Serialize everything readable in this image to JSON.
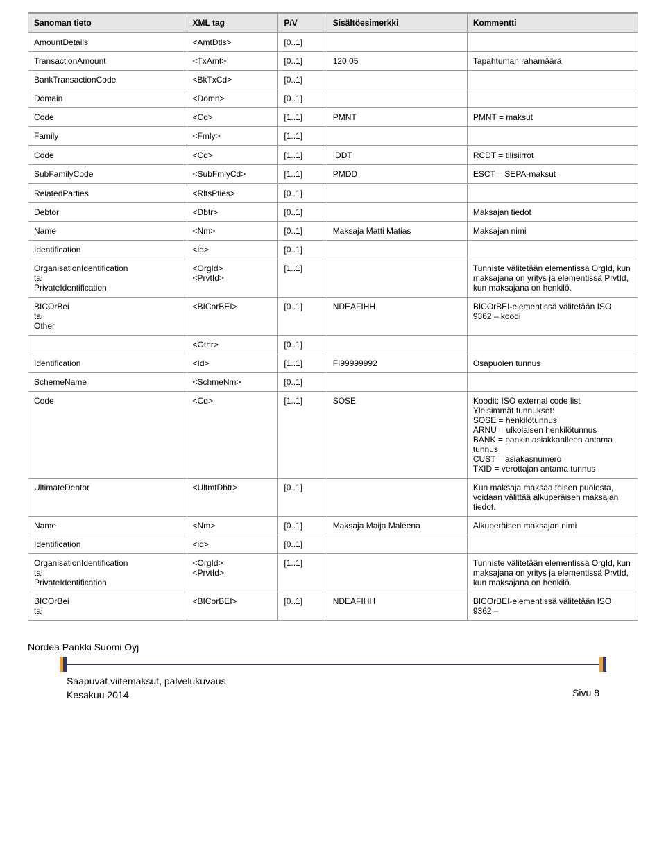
{
  "table": {
    "headers": {
      "c0": "Sanoman tieto",
      "c1": "XML tag",
      "c2": "P/V",
      "c3": "Sisältöesimerkki",
      "c4": "Kommentti"
    },
    "col_widths": [
      "26%",
      "15%",
      "8%",
      "23%",
      "28%"
    ],
    "border_color": "#999999",
    "header_bg": "#e6e6e6",
    "rows": [
      {
        "c0": "AmountDetails",
        "c1": "<AmtDtls>",
        "c2": "[0..1]",
        "c3": "",
        "c4": ""
      },
      {
        "c0": "TransactionAmount",
        "c1": "<TxAmt>",
        "c2": "[0..1]",
        "c3": "120.05",
        "c4": "Tapahtuman rahamäärä"
      },
      {
        "c0": "BankTransactionCode",
        "c1": "<BkTxCd>",
        "c2": "[0..1]",
        "c3": "",
        "c4": ""
      },
      {
        "c0": "Domain",
        "c1": "<Domn>",
        "c2": "[0..1]",
        "c3": "",
        "c4": ""
      },
      {
        "c0": "Code",
        "c1": "<Cd>",
        "c2": "[1..1]",
        "c3": "PMNT",
        "c4": "PMNT = maksut"
      },
      {
        "c0": "Family",
        "c1": "<Fmly>",
        "c2": "[1..1]",
        "c3": "",
        "c4": ""
      },
      {
        "c0": "Code",
        "c1": "<Cd>",
        "c2": "[1..1]",
        "c3": "IDDT",
        "c4": "RCDT = tilisiirrot",
        "heavy": true
      },
      {
        "c0": "SubFamilyCode",
        "c1": "<SubFmlyCd>",
        "c2": "[1..1]",
        "c3": "PMDD",
        "c4": "ESCT = SEPA-maksut",
        "heavy_bottom": true
      },
      {
        "c0": "RelatedParties",
        "c1": "<RltsPties>",
        "c2": "[0..1]",
        "c3": "",
        "c4": ""
      },
      {
        "c0": "Debtor",
        "c1": "<Dbtr>",
        "c2": "[0..1]",
        "c3": "",
        "c4": "Maksajan tiedot"
      },
      {
        "c0": "Name",
        "c1": "<Nm>",
        "c2": "[0..1]",
        "c3": "Maksaja Matti Matias",
        "c4": "Maksajan nimi"
      },
      {
        "c0": "Identification",
        "c1": "<id>",
        "c2": "[0..1]",
        "c3": "",
        "c4": ""
      },
      {
        "c0": "OrganisationIdentification\ntai\nPrivateIdentification",
        "c1": "<OrgId>\n<PrvtId>",
        "c2": "[1..1]",
        "c3": "",
        "c4": "Tunniste välitetään elementissä OrgId, kun maksajana on yritys ja elementissä PrvtId, kun maksajana on henkilö."
      },
      {
        "c0": "BICOrBei\ntai\nOther",
        "c1": "<BICorBEI>",
        "c2": "[0..1]",
        "c3": "NDEAFIHH",
        "c4": "BICOrBEI-elementissä välitetään ISO 9362 – koodi"
      },
      {
        "c0": "",
        "c1": "<Othr>",
        "c2": "[0..1]",
        "c3": "",
        "c4": ""
      },
      {
        "c0": "Identification",
        "c1": "<Id>",
        "c2": "[1..1]",
        "c3": "FI99999992",
        "c4": "Osapuolen tunnus"
      },
      {
        "c0": "SchemeName",
        "c1": "<SchmeNm>",
        "c2": "[0..1]",
        "c3": "",
        "c4": ""
      },
      {
        "c0": "Code",
        "c1": "<Cd>",
        "c2": "[1..1]",
        "c3": "SOSE",
        "c4": "Koodit: ISO external code list\nYleisimmät tunnukset:\nSOSE = henkilötunnus\nARNU = ulkolaisen henkilötunnus\nBANK = pankin asiakkaalleen antama tunnus\nCUST = asiakasnumero\nTXID = verottajan antama tunnus"
      },
      {
        "c0": "UltimateDebtor",
        "c1": "<UltmtDbtr>",
        "c2": "[0..1]",
        "c3": "",
        "c4": "Kun maksaja maksaa toisen puolesta, voidaan välittää alkuperäisen maksajan tiedot."
      },
      {
        "c0": "Name",
        "c1": "<Nm>",
        "c2": "[0..1]",
        "c3": "Maksaja Maija Maleena",
        "c4": "Alkuperäisen maksajan nimi"
      },
      {
        "c0": "Identification",
        "c1": "<id>",
        "c2": "[0..1]",
        "c3": "",
        "c4": ""
      },
      {
        "c0": "OrganisationIdentification\ntai\nPrivateIdentification",
        "c1": "<OrgId>\n<PrvtId>",
        "c2": "[1..1]",
        "c3": "",
        "c4": "Tunniste välitetään elementissä OrgId, kun maksajana on yritys ja elementissä PrvtId, kun maksajana on henkilö."
      },
      {
        "c0": "BICOrBei\ntai",
        "c1": "<BICorBEI>",
        "c2": "[0..1]",
        "c3": "NDEAFIHH",
        "c4": "BICOrBEI-elementissä välitetään ISO 9362 –"
      }
    ]
  },
  "footer": {
    "company": "Nordea Pankki Suomi Oyj",
    "doc_title": "Saapuvat viitemaksut, palvelukuvaus",
    "date": "Kesäkuu 2014",
    "page": "Sivu 8",
    "orange": "#e8a33d",
    "navy": "#2b3a6b"
  }
}
